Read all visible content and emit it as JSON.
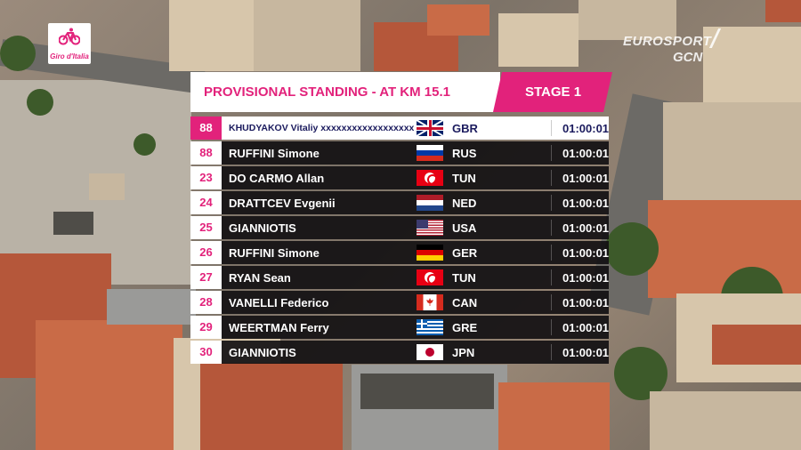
{
  "broadcast": {
    "logo_text": "Giro d'Italia",
    "network_line1": "EUROSPORT",
    "network_line2": "GCN"
  },
  "standings": {
    "title": "PROVISIONAL STANDING - AT KM 15.1",
    "stage": "STAGE 1",
    "rows": [
      {
        "pos": "88",
        "name": "KHUDYAKOV Vitaliy xxxxxxxxxxxxxxxxxxxxxxxx",
        "flag": "gbr-flag-icon",
        "nat": "GBR",
        "time": "01:00:01",
        "highlight": true
      },
      {
        "pos": "88",
        "name": "RUFFINI Simone",
        "flag": "rus-flag-icon",
        "nat": "RUS",
        "time": "01:00:01"
      },
      {
        "pos": "23",
        "name": "DO CARMO Allan",
        "flag": "tun-flag-icon",
        "nat": "TUN",
        "time": "01:00:01"
      },
      {
        "pos": "24",
        "name": "DRATTCEV Evgenii",
        "flag": "ned-flag-icon",
        "nat": "NED",
        "time": "01:00:01"
      },
      {
        "pos": "25",
        "name": "GIANNIOTIS",
        "flag": "usa-flag-icon",
        "nat": "USA",
        "time": "01:00:01"
      },
      {
        "pos": "26",
        "name": "RUFFINI Simone",
        "flag": "ger-flag-icon",
        "nat": "GER",
        "time": "01:00:01"
      },
      {
        "pos": "27",
        "name": "RYAN Sean",
        "flag": "tun-flag-icon",
        "nat": "TUN",
        "time": "01:00:01"
      },
      {
        "pos": "28",
        "name": "VANELLI Federico",
        "flag": "can-flag-icon",
        "nat": "CAN",
        "time": "01:00:01"
      },
      {
        "pos": "29",
        "name": "WEERTMAN Ferry",
        "flag": "gre-flag-icon",
        "nat": "GRE",
        "time": "01:00:01"
      },
      {
        "pos": "30",
        "name": "GIANNIOTIS",
        "flag": "jpn-flag-icon",
        "nat": "JPN",
        "time": "01:00:01"
      }
    ]
  },
  "colors": {
    "accent": "#e2227b",
    "row_bg": "#121012",
    "header_bg": "#ffffff"
  }
}
